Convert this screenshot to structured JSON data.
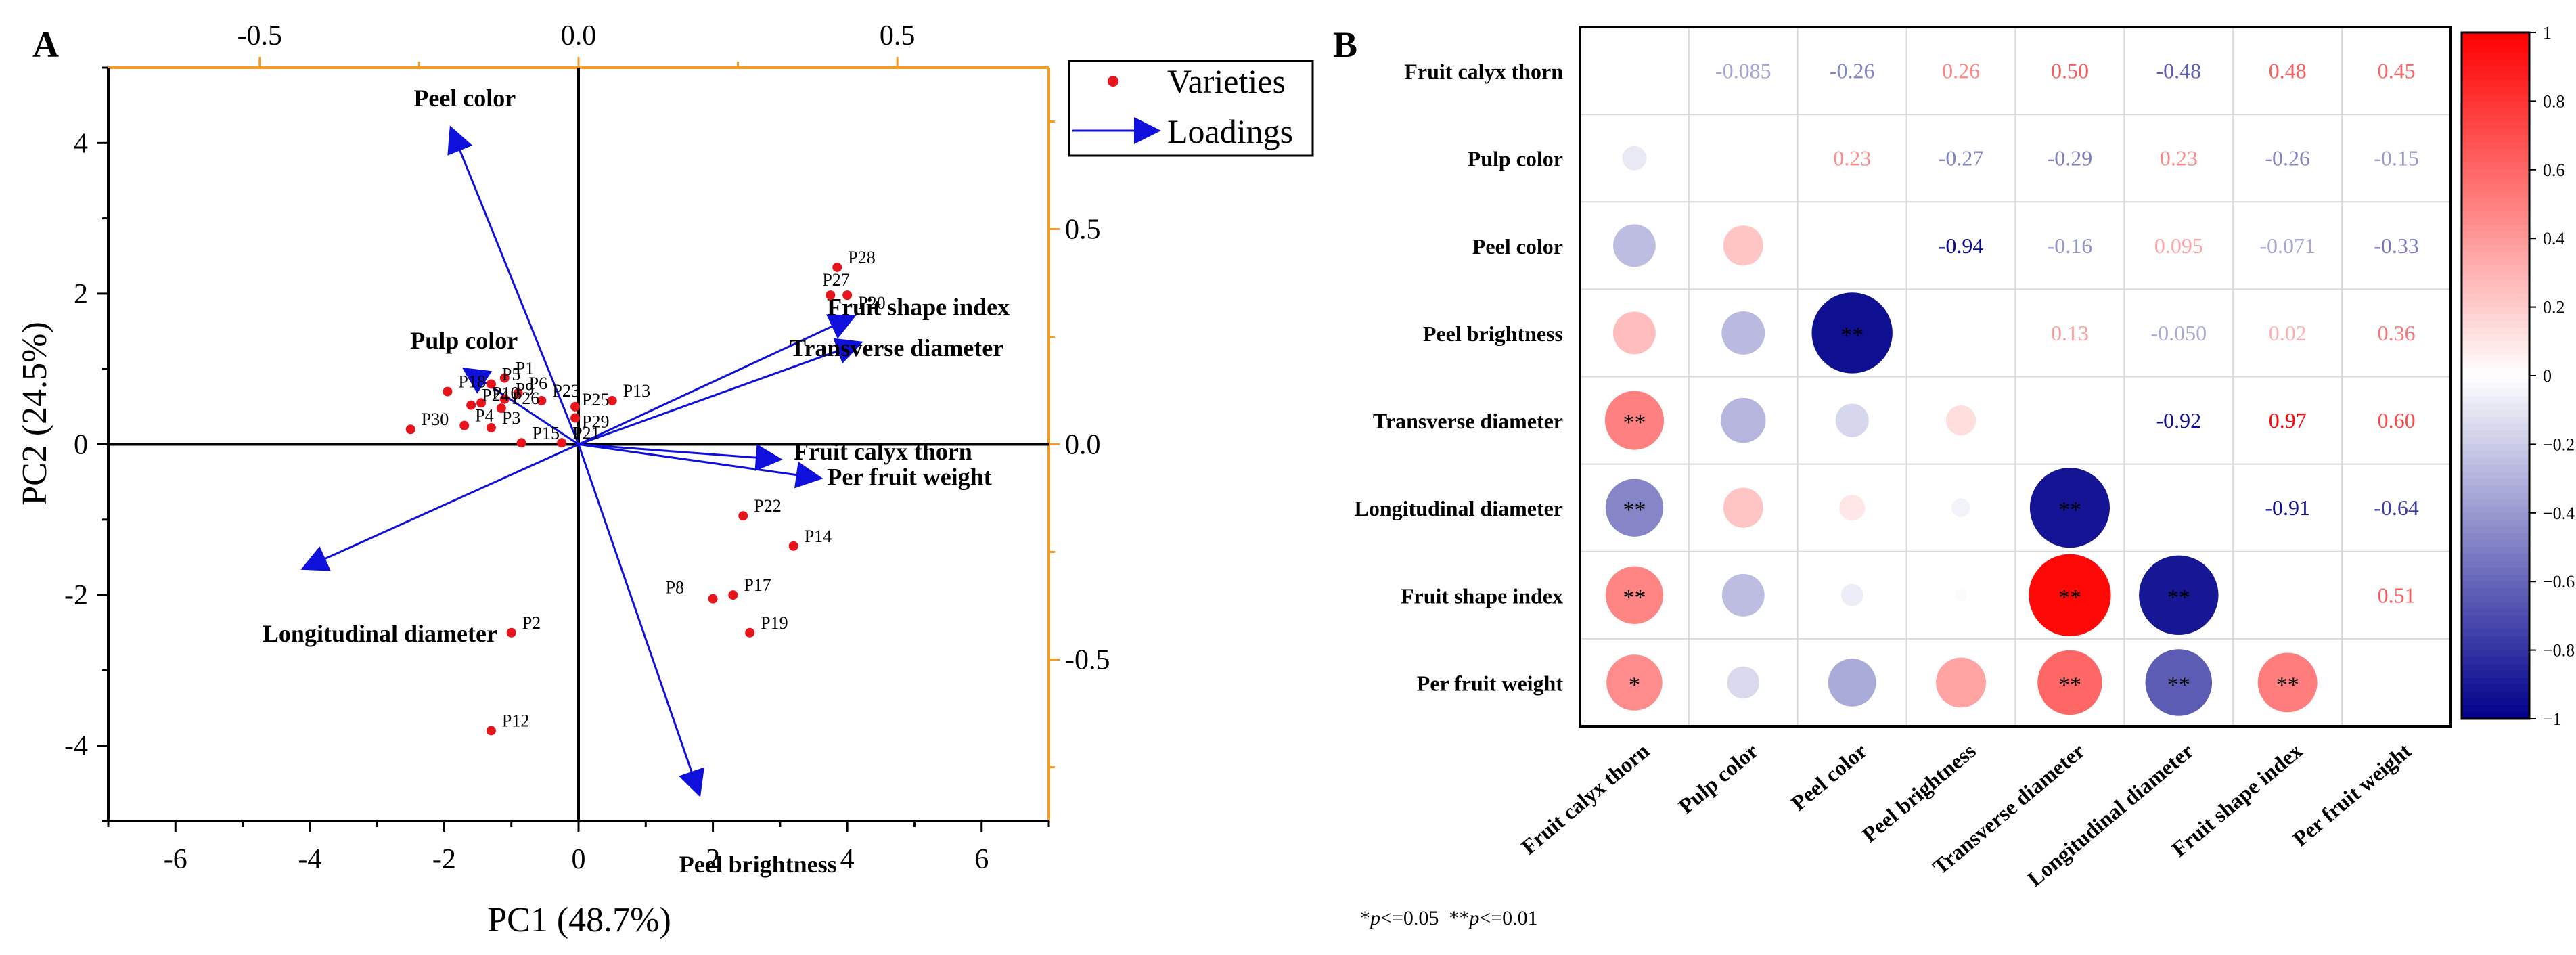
{
  "chart_data": [
    {
      "type": "scatter",
      "panel_label": "A",
      "title": "",
      "xlabel": "PC1 (48.7%)",
      "ylabel": "PC2 (24.5%)",
      "xlim": [
        -7,
        7
      ],
      "ylim": [
        -5,
        5
      ],
      "x_ticks": [
        -6,
        -4,
        -2,
        0,
        2,
        4,
        6
      ],
      "y_ticks": [
        -4,
        -2,
        0,
        2,
        4
      ],
      "x_tick_labels": [
        "-6",
        "-4",
        "-2",
        "0",
        "2",
        "4",
        "6"
      ],
      "y_tick_labels": [
        "-4",
        "-2",
        "0",
        "2",
        "4"
      ],
      "secondary_axes": {
        "top_lim": [
          -0.7375,
          0.7375
        ],
        "top_ticks": [
          -0.5,
          0.0,
          0.5
        ],
        "top_tick_labels": [
          "-0.5",
          "0.0",
          "0.5"
        ],
        "right_lim": [
          -0.875,
          0.875
        ],
        "right_ticks": [
          -0.5,
          0.0,
          0.5
        ],
        "right_tick_labels": [
          "-0.5",
          "0.0",
          "0.5"
        ]
      },
      "legend": {
        "position": "top-right-outside",
        "entries": [
          {
            "label": "Varieties",
            "marker": "point",
            "color": "#e8141c"
          },
          {
            "label": "Loadings",
            "marker": "arrow",
            "color": "#1010dd"
          }
        ]
      },
      "colors": {
        "points": "#e8141c",
        "loadings": "#1010dd",
        "secondary_axis": "#f59a23",
        "axis": "#000000"
      },
      "series": [
        {
          "name": "Varieties",
          "points": [
            {
              "label": "P28",
              "x": 3.85,
              "y": 2.35
            },
            {
              "label": "P27",
              "x": 3.75,
              "y": 1.98
            },
            {
              "label": "P20",
              "x": 4.0,
              "y": 1.98
            },
            {
              "label": "P13",
              "x": 0.5,
              "y": 0.58
            },
            {
              "label": "P25",
              "x": -0.05,
              "y": 0.5
            },
            {
              "label": "P29",
              "x": -0.05,
              "y": 0.35
            },
            {
              "label": "P23",
              "x": -0.55,
              "y": 0.58
            },
            {
              "label": "P1",
              "x": -1.1,
              "y": 0.88
            },
            {
              "label": "P5",
              "x": -1.3,
              "y": 0.8
            },
            {
              "label": "P18",
              "x": -1.95,
              "y": 0.7
            },
            {
              "label": "P6",
              "x": -0.9,
              "y": 0.68
            },
            {
              "label": "P9",
              "x": -1.1,
              "y": 0.6
            },
            {
              "label": "P26",
              "x": -1.15,
              "y": 0.48
            },
            {
              "label": "P10",
              "x": -1.45,
              "y": 0.55
            },
            {
              "label": "P24",
              "x": -1.6,
              "y": 0.52
            },
            {
              "label": "P3",
              "x": -1.3,
              "y": 0.22
            },
            {
              "label": "P4",
              "x": -1.7,
              "y": 0.25
            },
            {
              "label": "P30",
              "x": -2.5,
              "y": 0.2
            },
            {
              "label": "P15",
              "x": -0.85,
              "y": 0.02
            },
            {
              "label": "P21",
              "x": -0.25,
              "y": 0.02
            },
            {
              "label": "P22",
              "x": 2.45,
              "y": -0.95
            },
            {
              "label": "P14",
              "x": 3.2,
              "y": -1.35
            },
            {
              "label": "P8",
              "x": 2.0,
              "y": -2.05
            },
            {
              "label": "P17",
              "x": 2.3,
              "y": -2.0
            },
            {
              "label": "P19",
              "x": 2.55,
              "y": -2.5
            },
            {
              "label": "P2",
              "x": -1.0,
              "y": -2.5
            },
            {
              "label": "P12",
              "x": -1.3,
              "y": -3.8
            }
          ]
        },
        {
          "name": "Loadings",
          "arrows": [
            {
              "label": "Peel color",
              "x": -1.9,
              "y": 4.2
            },
            {
              "label": "Pulp color",
              "x": -1.7,
              "y": 1.0
            },
            {
              "label": "Longitudinal diameter",
              "x": -4.1,
              "y": -1.65
            },
            {
              "label": "Peel brightness",
              "x": 1.8,
              "y": -4.65
            },
            {
              "label": "Fruit calyx thorn",
              "x": 3.0,
              "y": -0.2
            },
            {
              "label": "Per fruit weight",
              "x": 3.6,
              "y": -0.45
            },
            {
              "label": "Fruit shape index",
              "x": 4.1,
              "y": 1.7
            },
            {
              "label": "Transverse diameter",
              "x": 4.2,
              "y": 1.35
            }
          ]
        }
      ]
    },
    {
      "type": "heatmap",
      "panel_label": "B",
      "title": "",
      "variables": [
        "Fruit calyx thorn",
        "Pulp color",
        "Peel color",
        "Peel brightness",
        "Transverse diameter",
        "Longitudinal diameter",
        "Fruit shape index",
        "Per fruit weight"
      ],
      "upper_triangle_values": [
        {
          "row": 0,
          "col": 1,
          "value": -0.085,
          "label": "-0.085"
        },
        {
          "row": 0,
          "col": 2,
          "value": -0.26,
          "label": "-0.26"
        },
        {
          "row": 0,
          "col": 3,
          "value": 0.26,
          "label": "0.26"
        },
        {
          "row": 0,
          "col": 4,
          "value": 0.5,
          "label": "0.50"
        },
        {
          "row": 0,
          "col": 5,
          "value": -0.48,
          "label": "-0.48"
        },
        {
          "row": 0,
          "col": 6,
          "value": 0.48,
          "label": "0.48"
        },
        {
          "row": 0,
          "col": 7,
          "value": 0.45,
          "label": "0.45"
        },
        {
          "row": 1,
          "col": 2,
          "value": 0.23,
          "label": "0.23"
        },
        {
          "row": 1,
          "col": 3,
          "value": -0.27,
          "label": "-0.27"
        },
        {
          "row": 1,
          "col": 4,
          "value": -0.29,
          "label": "-0.29"
        },
        {
          "row": 1,
          "col": 5,
          "value": 0.23,
          "label": "0.23"
        },
        {
          "row": 1,
          "col": 6,
          "value": -0.26,
          "label": "-0.26"
        },
        {
          "row": 1,
          "col": 7,
          "value": -0.15,
          "label": "-0.15"
        },
        {
          "row": 2,
          "col": 3,
          "value": -0.94,
          "label": "-0.94"
        },
        {
          "row": 2,
          "col": 4,
          "value": -0.16,
          "label": "-0.16"
        },
        {
          "row": 2,
          "col": 5,
          "value": 0.095,
          "label": "0.095"
        },
        {
          "row": 2,
          "col": 6,
          "value": -0.071,
          "label": "-0.071"
        },
        {
          "row": 2,
          "col": 7,
          "value": -0.33,
          "label": "-0.33"
        },
        {
          "row": 3,
          "col": 4,
          "value": 0.13,
          "label": "0.13"
        },
        {
          "row": 3,
          "col": 5,
          "value": -0.05,
          "label": "-0.050"
        },
        {
          "row": 3,
          "col": 6,
          "value": 0.02,
          "label": "0.02"
        },
        {
          "row": 3,
          "col": 7,
          "value": 0.36,
          "label": "0.36"
        },
        {
          "row": 4,
          "col": 5,
          "value": -0.92,
          "label": "-0.92"
        },
        {
          "row": 4,
          "col": 6,
          "value": 0.97,
          "label": "0.97"
        },
        {
          "row": 4,
          "col": 7,
          "value": 0.6,
          "label": "0.60"
        },
        {
          "row": 5,
          "col": 6,
          "value": -0.91,
          "label": "-0.91"
        },
        {
          "row": 5,
          "col": 7,
          "value": -0.64,
          "label": "-0.64"
        },
        {
          "row": 6,
          "col": 7,
          "value": 0.51,
          "label": "0.51"
        }
      ],
      "significance_marks": [
        {
          "row": 3,
          "col": 2,
          "mark": "**"
        },
        {
          "row": 4,
          "col": 0,
          "mark": "**"
        },
        {
          "row": 5,
          "col": 0,
          "mark": "**"
        },
        {
          "row": 5,
          "col": 4,
          "mark": "**"
        },
        {
          "row": 6,
          "col": 0,
          "mark": "**"
        },
        {
          "row": 6,
          "col": 4,
          "mark": "**"
        },
        {
          "row": 6,
          "col": 5,
          "mark": "**"
        },
        {
          "row": 7,
          "col": 0,
          "mark": "*"
        },
        {
          "row": 7,
          "col": 4,
          "mark": "**"
        },
        {
          "row": 7,
          "col": 5,
          "mark": "**"
        },
        {
          "row": 7,
          "col": 6,
          "mark": "**"
        }
      ],
      "colorbar": {
        "range": [
          -1,
          1
        ],
        "ticks": [
          1,
          0.8,
          0.6,
          0.4,
          0.2,
          0,
          -0.2,
          -0.4,
          -0.6,
          -0.8,
          -1
        ],
        "tick_labels": [
          "1",
          "0.8",
          "0.6",
          "0.4",
          "0.2",
          "0",
          "−0.2",
          "−0.4",
          "−0.6",
          "−0.8",
          "−1"
        ],
        "position": "right",
        "colors": {
          "negative": "#00008b",
          "zero": "#ffffff",
          "positive": "#ff0000"
        }
      },
      "footnote": {
        "prefix": "*",
        "p1": "p",
        "t1": "<=0.05  **",
        "p2": "p",
        "t2": "<=0.01"
      }
    }
  ]
}
